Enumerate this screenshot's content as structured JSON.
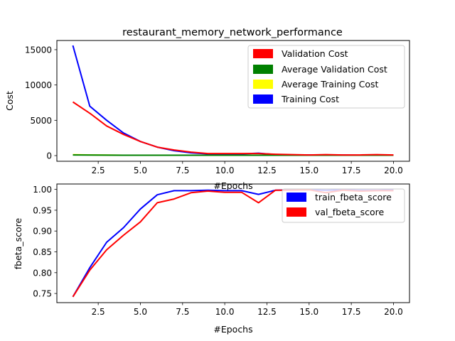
{
  "chart_data": [
    {
      "type": "line",
      "title": "restaurant_memory_network_performance",
      "xlabel": "#Epochs",
      "ylabel": "Cost",
      "xlim": [
        0.05,
        20.95
      ],
      "ylim": [
        -800,
        16300
      ],
      "xticks": [
        2.5,
        5.0,
        7.5,
        10.0,
        12.5,
        15.0,
        17.5,
        20.0
      ],
      "xtick_labels": [
        "2.5",
        "5.0",
        "7.5",
        "10.0",
        "12.5",
        "15.0",
        "17.5",
        "20.0"
      ],
      "yticks": [
        0,
        5000,
        10000,
        15000
      ],
      "ytick_labels": [
        "0",
        "5000",
        "10000",
        "15000"
      ],
      "grid": false,
      "legend_position": "top-right",
      "x": [
        1,
        2,
        3,
        4,
        5,
        6,
        7,
        8,
        9,
        10,
        11,
        12,
        13,
        14,
        15,
        16,
        17,
        18,
        19,
        20
      ],
      "series": [
        {
          "name": "Validation Cost",
          "color": "#ff0000",
          "values": [
            7600,
            6000,
            4200,
            3000,
            2000,
            1200,
            800,
            500,
            300,
            300,
            300,
            300,
            200,
            150,
            100,
            150,
            100,
            100,
            150,
            100
          ]
        },
        {
          "name": "Average Validation Cost",
          "color": "#008000",
          "values": [
            100,
            80,
            70,
            60,
            50,
            50,
            50,
            50,
            50,
            50,
            50,
            50,
            50,
            50,
            50,
            50,
            50,
            50,
            50,
            50
          ]
        },
        {
          "name": "Average Training Cost",
          "color": "#ffff00",
          "values": [
            150,
            100,
            80,
            60,
            50,
            50,
            50,
            50,
            50,
            50,
            50,
            50,
            50,
            50,
            50,
            50,
            50,
            50,
            50,
            50
          ]
        },
        {
          "name": "Training Cost",
          "color": "#0000ff",
          "values": [
            15600,
            7000,
            5000,
            3200,
            2000,
            1200,
            700,
            400,
            250,
            200,
            250,
            350,
            150,
            100,
            100,
            80,
            80,
            60,
            60,
            50
          ]
        }
      ],
      "draw_order": [
        "Training Cost",
        "Average Training Cost",
        "Average Validation Cost",
        "Validation Cost"
      ]
    },
    {
      "type": "line",
      "title": "",
      "xlabel": "#Epochs",
      "ylabel": "fbeta_score",
      "xlim": [
        0.05,
        20.95
      ],
      "ylim": [
        0.728,
        1.013
      ],
      "xticks": [
        2.5,
        5.0,
        7.5,
        10.0,
        12.5,
        15.0,
        17.5,
        20.0
      ],
      "xtick_labels": [
        "2.5",
        "5.0",
        "7.5",
        "10.0",
        "12.5",
        "15.0",
        "17.5",
        "20.0"
      ],
      "yticks": [
        0.75,
        0.8,
        0.85,
        0.9,
        0.95,
        1.0
      ],
      "ytick_labels": [
        "0.75",
        "0.80",
        "0.85",
        "0.90",
        "0.95",
        "1.00"
      ],
      "grid": false,
      "legend_position": "top-right",
      "x": [
        1,
        2,
        3,
        4,
        5,
        6,
        7,
        8,
        9,
        10,
        11,
        12,
        13,
        14,
        15,
        16,
        17,
        18,
        19,
        20
      ],
      "series": [
        {
          "name": "train_fbeta_score",
          "color": "#0000ff",
          "values": [
            0.742,
            0.812,
            0.873,
            0.908,
            0.953,
            0.987,
            0.997,
            0.997,
            0.998,
            0.997,
            0.997,
            0.988,
            0.998,
            0.999,
            0.999,
            0.998,
            0.999,
            0.998,
            0.998,
            0.999
          ]
        },
        {
          "name": "val_fbeta_score",
          "color": "#ff0000",
          "values": [
            0.742,
            0.806,
            0.855,
            0.89,
            0.922,
            0.968,
            0.977,
            0.992,
            0.996,
            0.993,
            0.993,
            0.968,
            0.998,
            0.998,
            0.999,
            0.992,
            0.998,
            0.996,
            0.997,
            0.997
          ]
        }
      ],
      "draw_order": [
        "train_fbeta_score",
        "val_fbeta_score"
      ]
    }
  ]
}
